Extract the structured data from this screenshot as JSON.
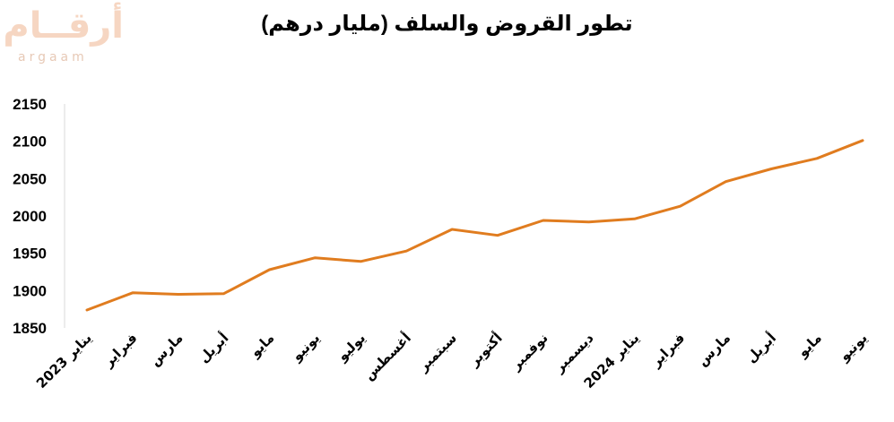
{
  "title": "تطور القروض والسلف (مليار درهم)",
  "logo": {
    "arabic": "أرقــام",
    "latin": "argaam"
  },
  "chart_data": {
    "type": "line",
    "title": "تطور القروض والسلف (مليار درهم)",
    "xlabel": "",
    "ylabel": "",
    "categories": [
      "يناير 2023",
      "فبراير",
      "مارس",
      "أبريل",
      "مايو",
      "يونيو",
      "يوليو",
      "أغسطس",
      "سبتمبر",
      "أكتوبر",
      "نوفمبر",
      "ديسمبر",
      "يناير 2024",
      "فبراير",
      "مارس",
      "أبريل",
      "مايو",
      "يونيو"
    ],
    "series": [
      {
        "values": [
          1874,
          1897,
          1895,
          1896,
          1928,
          1944,
          1939,
          1953,
          1982,
          1974,
          1994,
          1992,
          1996,
          2013,
          2046,
          2063,
          2077,
          2101
        ],
        "color": "#E07C1F"
      }
    ],
    "yticks": [
      1850,
      1900,
      1950,
      2000,
      2050,
      2100,
      2150
    ],
    "ylim": [
      1850,
      2150
    ],
    "grid": false,
    "legend": "none"
  }
}
